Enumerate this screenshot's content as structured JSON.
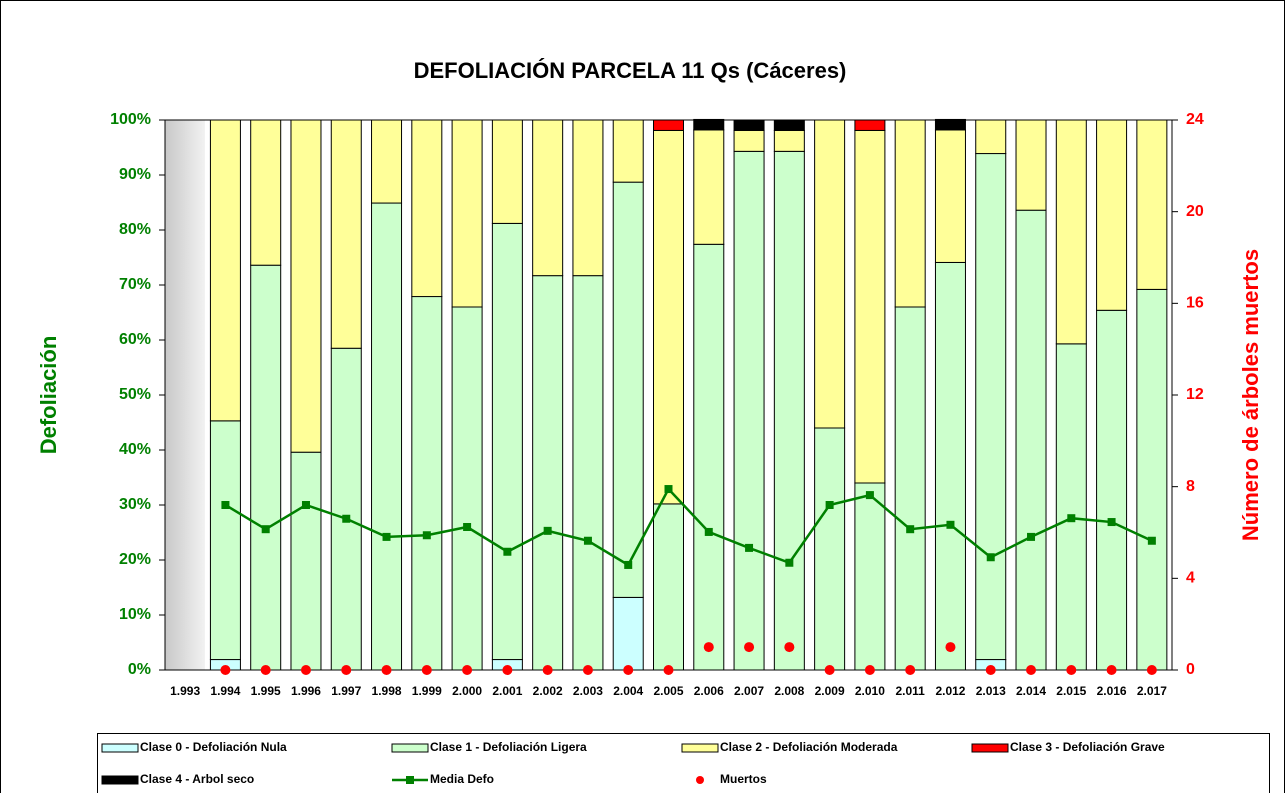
{
  "chart_data": {
    "type": "bar",
    "stacked": true,
    "title": "DEFOLIACIÓN PARCELA 11 Qs (Cáceres)",
    "y_label": "Defoliación",
    "y2_label": "Número de árboles muertos",
    "categories": [
      "1.993",
      "1.994",
      "1.995",
      "1.996",
      "1.997",
      "1.998",
      "1.999",
      "2.000",
      "2.001",
      "2.002",
      "2.003",
      "2.004",
      "2.005",
      "2.006",
      "2.007",
      "2.008",
      "2.009",
      "2.010",
      "2.011",
      "2.012",
      "2.013",
      "2.014",
      "2.015",
      "2.016",
      "2.017"
    ],
    "ylim": [
      0,
      100
    ],
    "yticks": [
      {
        "value": 0,
        "label": "0%"
      },
      {
        "value": 10,
        "label": "10%"
      },
      {
        "value": 20,
        "label": "20%"
      },
      {
        "value": 30,
        "label": "30%"
      },
      {
        "value": 40,
        "label": "40%"
      },
      {
        "value": 50,
        "label": "50%"
      },
      {
        "value": 60,
        "label": "60%"
      },
      {
        "value": 70,
        "label": "70%"
      },
      {
        "value": 80,
        "label": "80%"
      },
      {
        "value": 90,
        "label": "90%"
      },
      {
        "value": 100,
        "label": "100%"
      }
    ],
    "y2lim": [
      0,
      24
    ],
    "y2ticks": [
      0,
      4,
      8,
      12,
      16,
      20,
      24
    ],
    "series": [
      {
        "name": "Clase 0 - Defoliación Nula",
        "color": "#ccffff",
        "type": "bar",
        "values": [
          null,
          1.9,
          0,
          0,
          0,
          0,
          0,
          0,
          1.9,
          0,
          0,
          13.2,
          0,
          0,
          0,
          0,
          0,
          0,
          0,
          0,
          1.9,
          0,
          0,
          0,
          0
        ]
      },
      {
        "name": "Clase 1 - Defoliación Ligera",
        "color": "#ccffcc",
        "type": "bar",
        "values": [
          null,
          43.4,
          73.6,
          39.6,
          58.5,
          84.9,
          67.9,
          66.0,
          79.3,
          71.7,
          71.7,
          75.5,
          30.2,
          77.4,
          94.3,
          94.3,
          44.0,
          34.0,
          66.0,
          74.1,
          92.0,
          83.6,
          59.3,
          65.4,
          69.2
        ]
      },
      {
        "name": "Clase 2 - Defoliación Moderada",
        "color": "#ffff99",
        "type": "bar",
        "values": [
          null,
          54.7,
          26.4,
          60.4,
          41.5,
          15.1,
          32.1,
          34.0,
          18.8,
          28.3,
          28.3,
          11.3,
          67.9,
          20.8,
          3.8,
          3.8,
          56.0,
          64.1,
          34.0,
          24.1,
          6.1,
          16.4,
          40.7,
          34.6,
          30.8
        ]
      },
      {
        "name": "Clase 3 - Defoliación Grave",
        "color": "#ff0000",
        "type": "bar",
        "values": [
          null,
          0,
          0,
          0,
          0,
          0,
          0,
          0,
          0,
          0,
          0,
          0,
          1.9,
          0,
          0,
          0,
          0,
          1.9,
          0,
          0,
          0,
          0,
          0,
          0,
          0
        ]
      },
      {
        "name": "Clase 4 - Arbol seco",
        "color": "#000000",
        "type": "bar",
        "values": [
          null,
          0,
          0,
          0,
          0,
          0,
          0,
          0,
          0,
          0,
          0,
          0,
          0,
          1.9,
          1.9,
          1.9,
          0,
          0,
          0,
          1.9,
          0,
          0,
          0,
          0,
          0
        ]
      },
      {
        "name": "Media Defo",
        "color": "#008000",
        "type": "line",
        "values": [
          null,
          30.0,
          25.6,
          30.0,
          27.5,
          24.2,
          24.5,
          26.0,
          21.5,
          25.3,
          23.5,
          19.1,
          32.9,
          25.1,
          22.2,
          19.5,
          30.0,
          31.8,
          25.6,
          26.4,
          20.5,
          24.2,
          27.6,
          26.9,
          23.5
        ]
      },
      {
        "name": "Muertos",
        "color": "#ff0000",
        "type": "scatter",
        "axis": "y2",
        "values": [
          null,
          0,
          0,
          0,
          0,
          0,
          0,
          0,
          0,
          0,
          0,
          0,
          0,
          1,
          1,
          1,
          0,
          0,
          0,
          1,
          0,
          0,
          0,
          0,
          0
        ]
      }
    ]
  }
}
